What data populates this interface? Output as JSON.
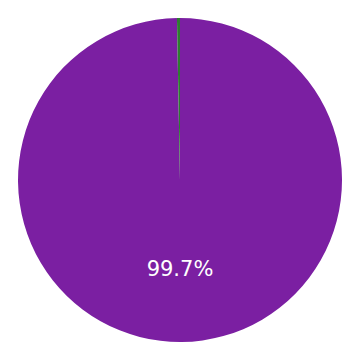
{
  "chart_data": {
    "type": "pie",
    "values": [
      99.7,
      0.3
    ],
    "colors": [
      "#7B1FA2",
      "#2E7D32"
    ],
    "annotations": [
      {
        "text": "99.7%"
      }
    ]
  }
}
